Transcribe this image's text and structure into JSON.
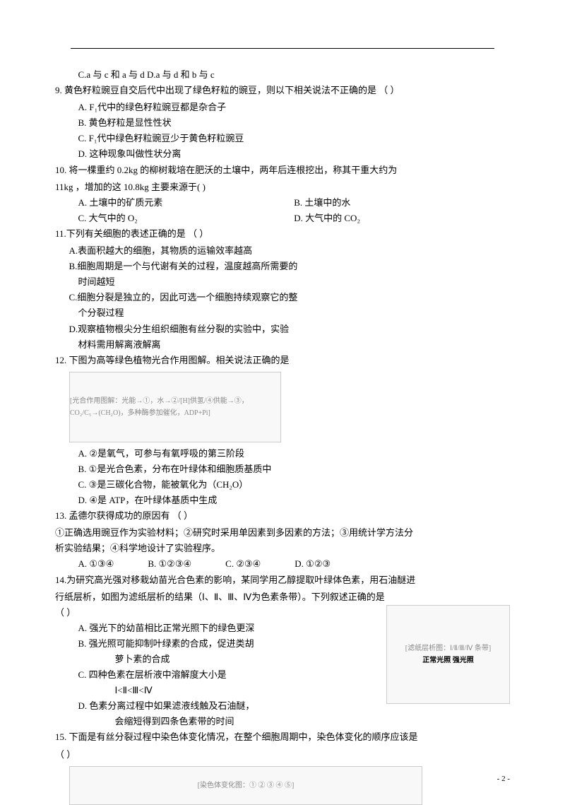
{
  "lines": {
    "l1": "C.a 与 c 和 a 与 d          D.a 与 d 和 b 与 c",
    "q9": "9.  黄色籽粒豌豆自交后代中出现了绿色籽粒的豌豆，则以下相关说法不正确的是    （     ）",
    "q9a": "A.  F₁代中的绿色籽粒豌豆都是杂合子",
    "q9b": "B.  黄色籽粒是显性性状",
    "q9c": "C.  F₁代中绿色籽粒豌豆少于黄色籽粒豌豆",
    "q9d": "D.  这种现象叫做性状分离",
    "q10": "10.  将一棵重约   0.2kg   的柳树栽培在肥沃的土壤中，两年后连根挖出，称其干重大约为",
    "q10_2": "11kg ，增加的这 10.8kg 主要来源于(  )",
    "q10a_label": "A.  土壤中的矿质元素",
    "q10b_label": "B.  土壤中的水",
    "q10c_label": "C.  大气中的 O₂",
    "q10d_label": "D.  大气中的 CO₂",
    "q11": "11.下列有关细胞的表述正确的是                       （     ）",
    "q11a": "A.表面积越大的细胞，其物质的运输效率越高",
    "q11b": "B.细胞周期是一个与代谢有关的过程，温度越高所需要的",
    "q11b2": "时间越短",
    "q11c": "C.细胞分裂是独立的，因此可选一个细胞持续观察它的整",
    "q11c2": "个分裂过程",
    "q11d": "D.观察植物根尖分生组织细胞有丝分裂的实验中，实验",
    "q11d2": "材料需用解离液解离",
    "q12": "12.  下图为高等绿色植物光合作用图解。相关说法正确的是",
    "q12a": "A.  ②是氧气，可参与有氧呼吸的第三阶段",
    "q12b": "B.  ①是光合色素，分布在叶绿体和细胞质基质中",
    "q12c": "C.  ③是三碳化合物，能被氧化为（CH₂O）",
    "q12d": "D.  ④是 ATP，在叶绿体基质中生成",
    "q13": "13.  孟德尔获得成功的原因有                           （     ）",
    "q13_2": " ①正确选用豌豆作为实验材料；②研究时采用单因素到多因素的方法；③用统计学方法分",
    "q13_3": "析实验结果；④科学地设计了实验程序。",
    "q13_opts_a": "A. ①③④",
    "q13_opts_b": "B. ①②③④",
    "q13_opts_c": "C. ②③④",
    "q13_opts_d": "D. ①②③",
    "q14": "14.为研究高光强对移栽幼苗光合色素的影响，某同学用乙醇提取叶绿体色素，用石油醚进",
    "q14_2": "行纸层析，如图为滤纸层析的结果（Ⅰ、Ⅱ、Ⅲ、Ⅳ为色素条带）。下列叙述正确的是",
    "q14_3": "（      ）",
    "q14a": "A.  强光下的幼苗相比正常光照下的绿色更深",
    "q14b": "B.  强光照可能抑制叶绿素的合成，促进类胡",
    "q14b2": "萝卜素的合成",
    "q14c": "C.  四种色素在层析液中溶解度大小是",
    "q14c2": "Ⅰ<Ⅱ<Ⅲ<Ⅳ",
    "q14d": "D.  色素分离过程中如果滤液线触及石油醚，",
    "q14d2": "会缩短得到四条色素带的时间",
    "q15": "15.  下面是有丝分裂过程中染色体变化情况，在整个细胞周期中，染色体变化的顺序应该是",
    "q15_2": "（      ）",
    "pagenum": "- 2 -",
    "diag1": "[光合作用图解：光能→①，水→②/[H]供氢/④供能→③，CO₂/C₅→(CH₂O)，多种酶参加催化，ADP+Pi]",
    "diag2_1": "[滤纸层析图：Ⅰ/Ⅱ/Ⅲ/Ⅳ 条带]",
    "diag2_2": "正常光照    强光照",
    "diag3": "[染色体变化图：① ② ③ ④ ⑤]"
  }
}
